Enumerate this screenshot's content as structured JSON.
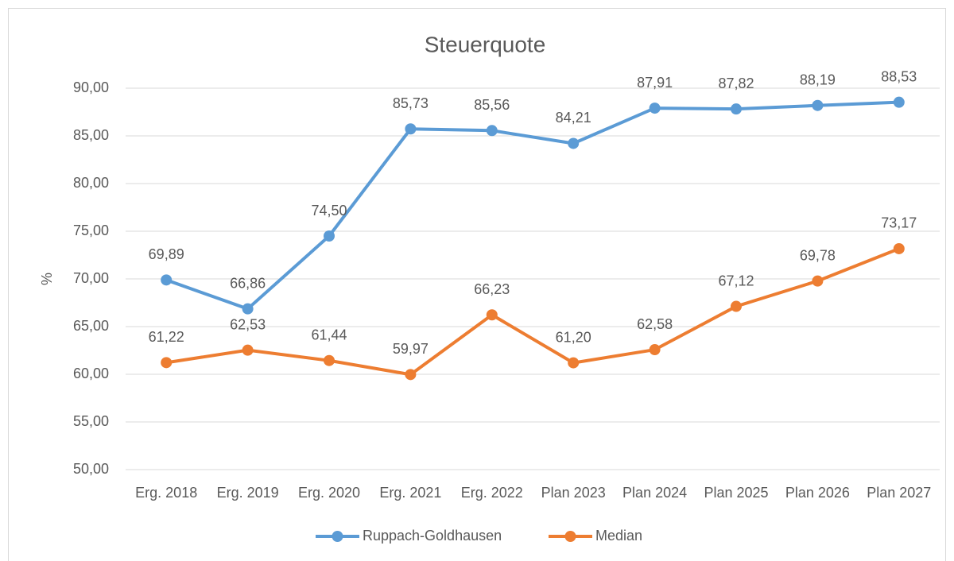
{
  "chart_data": {
    "type": "line",
    "title": "Steuerquote",
    "y_axis_label": "%",
    "categories": [
      "Erg. 2018",
      "Erg. 2019",
      "Erg. 2020",
      "Erg. 2021",
      "Erg. 2022",
      "Plan 2023",
      "Plan 2024",
      "Plan 2025",
      "Plan 2026",
      "Plan 2027"
    ],
    "series": [
      {
        "name": "Ruppach-Goldhausen",
        "color": "#5b9bd5",
        "values": [
          69.89,
          66.86,
          74.5,
          85.73,
          85.56,
          84.21,
          87.91,
          87.82,
          88.19,
          88.53
        ],
        "value_labels": [
          "69,89",
          "66,86",
          "74,50",
          "85,73",
          "85,56",
          "84,21",
          "87,91",
          "87,82",
          "88,19",
          "88,53"
        ]
      },
      {
        "name": "Median",
        "color": "#ed7d31",
        "values": [
          61.22,
          62.53,
          61.44,
          59.97,
          66.23,
          61.2,
          62.58,
          67.12,
          69.78,
          73.17
        ],
        "value_labels": [
          "61,22",
          "62,53",
          "61,44",
          "59,97",
          "66,23",
          "61,20",
          "62,58",
          "67,12",
          "69,78",
          "73,17"
        ]
      }
    ],
    "ylim": [
      50,
      90
    ],
    "yticks": [
      {
        "value": 50,
        "label": "50,00"
      },
      {
        "value": 55,
        "label": "55,00"
      },
      {
        "value": 60,
        "label": "60,00"
      },
      {
        "value": 65,
        "label": "65,00"
      },
      {
        "value": 70,
        "label": "70,00"
      },
      {
        "value": 75,
        "label": "75,00"
      },
      {
        "value": 80,
        "label": "80,00"
      },
      {
        "value": 85,
        "label": "85,00"
      },
      {
        "value": 90,
        "label": "90,00"
      }
    ],
    "grid": true,
    "legend": "bottom"
  }
}
